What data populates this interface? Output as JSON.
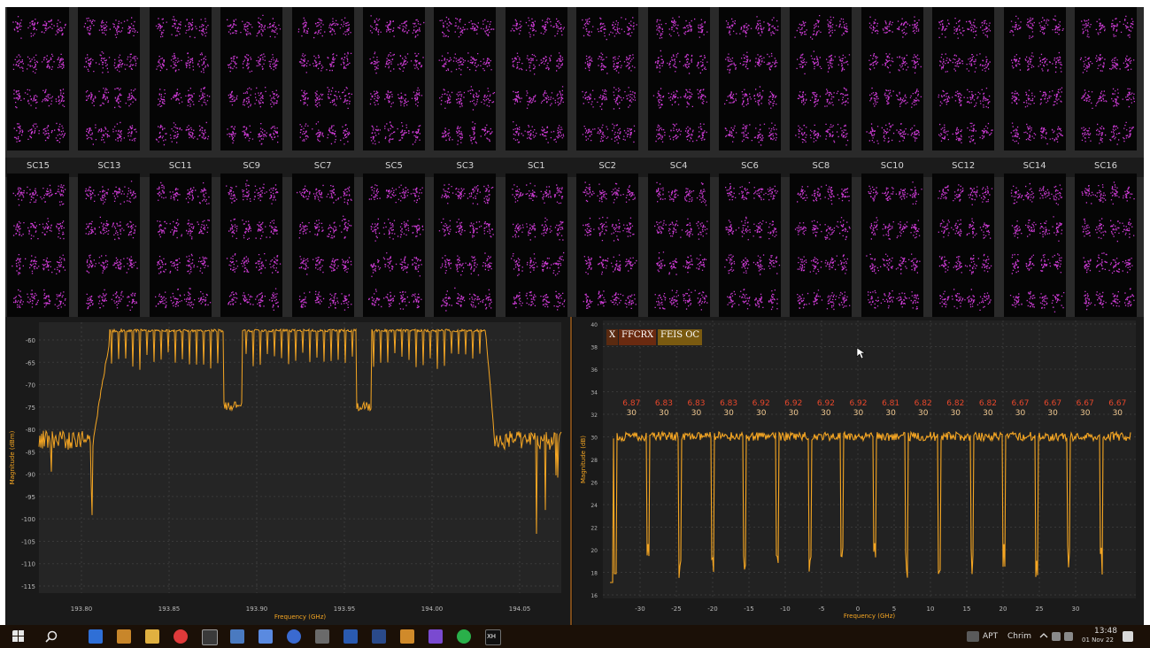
{
  "constellations": {
    "labels": [
      "SC15",
      "SC13",
      "SC11",
      "SC9",
      "SC7",
      "SC5",
      "SC3",
      "SC1",
      "SC2",
      "SC4",
      "SC6",
      "SC8",
      "SC10",
      "SC12",
      "SC14",
      "SC16"
    ],
    "point_color": "#e040e8"
  },
  "spectrum_left": {
    "trace_color": "#f5a623",
    "y_ticks": [
      "-60",
      "-65",
      "-70",
      "-75",
      "-80",
      "-85",
      "-90",
      "-95",
      "-100",
      "-105",
      "-110",
      "-115"
    ],
    "x_ticks": [
      "193.80",
      "193.85",
      "193.90",
      "193.95",
      "194.00",
      "194.05"
    ],
    "x_label": "Frequency (GHz)",
    "y_label": "Magnitude (dBm)"
  },
  "spectrum_right": {
    "trace_color": "#f5a623",
    "legend": {
      "left": "X",
      "middle": "FFCRX",
      "right": "FEIS OC"
    },
    "y_ticks": [
      "40",
      "38",
      "36",
      "34",
      "32",
      "30",
      "28",
      "26",
      "24",
      "22",
      "20",
      "18",
      "16"
    ],
    "x_ticks": [
      "-30",
      "-25",
      "-20",
      "-15",
      "-10",
      "-5",
      "0",
      "5",
      "10",
      "15",
      "20",
      "25",
      "30"
    ],
    "x_label": "Frequency (GHz)",
    "y_label": "Magnitude (dB)",
    "annotations": [
      {
        "top": "6.87",
        "bottom": "30"
      },
      {
        "top": "6.83",
        "bottom": "30"
      },
      {
        "top": "6.83",
        "bottom": "30"
      },
      {
        "top": "6.83",
        "bottom": "30"
      },
      {
        "top": "6.92",
        "bottom": "30"
      },
      {
        "top": "6.92",
        "bottom": "30"
      },
      {
        "top": "6.92",
        "bottom": "30"
      },
      {
        "top": "6.92",
        "bottom": "30"
      },
      {
        "top": "6.81",
        "bottom": "30"
      },
      {
        "top": "6.82",
        "bottom": "30"
      },
      {
        "top": "6.82",
        "bottom": "30"
      },
      {
        "top": "6.82",
        "bottom": "30"
      },
      {
        "top": "6.67",
        "bottom": "30"
      },
      {
        "top": "6.67",
        "bottom": "30"
      },
      {
        "top": "6.67",
        "bottom": "30"
      },
      {
        "top": "6.67",
        "bottom": "30"
      }
    ],
    "annotation_color": "#e8472b"
  },
  "taskbar": {
    "lang": "APT",
    "lang2": "Chrim",
    "time": "13:48",
    "date": "01 Nov 22",
    "app_label": "XH"
  }
}
